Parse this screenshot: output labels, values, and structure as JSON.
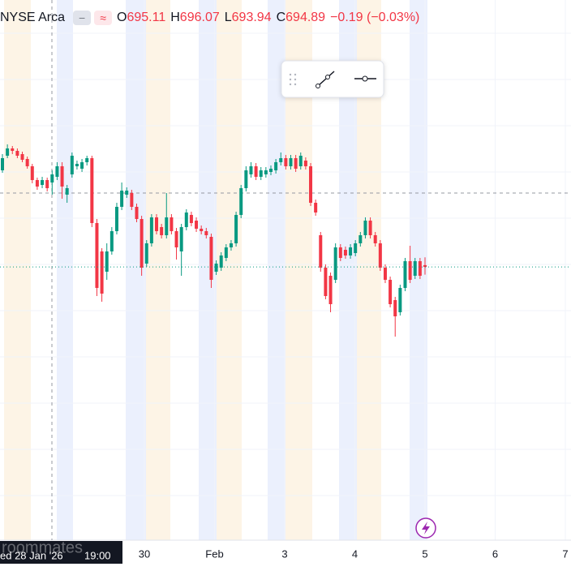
{
  "exchange": "NYSE Arca",
  "ohlc": [
    {
      "label": "O",
      "value": "695.11"
    },
    {
      "label": "H",
      "value": "696.07"
    },
    {
      "label": "L",
      "value": "693.94"
    },
    {
      "label": "C",
      "value": "694.89"
    }
  ],
  "change": "−0.19 (−0.03%)",
  "watermark": "roommates",
  "chart_data": {
    "type": "candlestick",
    "up_color": "#089981",
    "down_color": "#f23645",
    "ylim": [
      661.2,
      727.8
    ],
    "categories": [
      "30",
      "Feb",
      "3",
      "4",
      "5",
      "6",
      "7"
    ],
    "crosshair": {
      "price": 704.0,
      "date": "ed 28 Jan '26",
      "time": "19:00"
    },
    "open": [
      706.8,
      708.6,
      709.5,
      709.2,
      708.8,
      708.2,
      707.3,
      705.6,
      705.0,
      705.6,
      705.3,
      706.0,
      707.3,
      703.8,
      706.3,
      707.3,
      707.0,
      707.8,
      708.3,
      700.3,
      696.8,
      694.3,
      696.8,
      699.3,
      702.3,
      703.8,
      704.0,
      702.3,
      700.8,
      695.3,
      697.8,
      701.0,
      699.8,
      698.8,
      701.0,
      699.3,
      696.8,
      699.8,
      701.3,
      700.6,
      699.6,
      699.3,
      698.6,
      694.3,
      694.8,
      696.0,
      697.3,
      697.8,
      701.3,
      704.6,
      706.3,
      707.3,
      706.0,
      706.3,
      706.6,
      706.8,
      707.8,
      708.3,
      707.3,
      708.3,
      707.3,
      708.0,
      707.3,
      702.8,
      698.8,
      694.8,
      693.8,
      693.3,
      697.3,
      697.0,
      696.3,
      696.6,
      697.8,
      698.8,
      700.6,
      698.8,
      697.8,
      694.8,
      693.3,
      690.8,
      689.3,
      692.3,
      695.6,
      693.8,
      695.6,
      695.11
    ],
    "high": [
      708.8,
      710.0,
      709.8,
      709.5,
      709.1,
      708.5,
      707.6,
      705.9,
      706.0,
      705.9,
      706.8,
      707.8,
      707.8,
      705.0,
      709.0,
      708.0,
      708.2,
      708.6,
      708.6,
      700.8,
      697.2,
      697.8,
      699.8,
      702.8,
      705.3,
      704.7,
      704.4,
      702.7,
      701.2,
      698.2,
      701.4,
      701.4,
      700.2,
      704.0,
      701.4,
      699.7,
      700.2,
      702.0,
      701.7,
      701.0,
      700.0,
      699.7,
      699.0,
      695.7,
      696.7,
      697.7,
      698.2,
      701.7,
      705.0,
      707.3,
      707.8,
      707.7,
      707.2,
      707.2,
      707.4,
      708.2,
      709.0,
      708.7,
      708.7,
      708.7,
      709.0,
      708.4,
      707.7,
      703.2,
      699.2,
      695.2,
      694.2,
      697.8,
      697.7,
      697.4,
      697.7,
      698.2,
      699.2,
      701.0,
      701.0,
      699.2,
      698.2,
      695.2,
      693.7,
      691.2,
      692.7,
      696.0,
      697.5,
      696.0,
      696.0,
      696.07
    ],
    "low": [
      706.5,
      708.3,
      708.8,
      708.3,
      707.8,
      707.0,
      705.2,
      704.4,
      704.6,
      704.2,
      703.8,
      705.6,
      703.3,
      702.8,
      705.9,
      706.9,
      706.6,
      707.4,
      699.8,
      691.3,
      690.6,
      693.3,
      696.4,
      698.9,
      701.9,
      703.4,
      701.9,
      700.4,
      693.8,
      694.9,
      697.4,
      698.9,
      698.4,
      698.4,
      698.9,
      695.8,
      693.8,
      699.4,
      699.9,
      699.2,
      698.9,
      698.4,
      692.3,
      693.9,
      694.4,
      695.6,
      696.9,
      697.4,
      700.9,
      704.2,
      705.9,
      705.6,
      705.6,
      705.9,
      706.2,
      706.4,
      707.4,
      706.9,
      706.9,
      706.6,
      706.9,
      706.9,
      702.4,
      701.2,
      694.3,
      690.9,
      689.3,
      692.9,
      695.6,
      695.9,
      695.9,
      696.2,
      697.4,
      698.4,
      698.4,
      697.4,
      694.4,
      692.9,
      689.9,
      686.3,
      688.9,
      691.9,
      692.9,
      693.4,
      693.4,
      693.94
    ],
    "close": [
      708.3,
      709.5,
      709.2,
      708.6,
      708.1,
      707.3,
      705.6,
      704.8,
      705.6,
      704.6,
      706.3,
      707.3,
      704.8,
      704.6,
      708.6,
      707.6,
      707.8,
      708.3,
      700.3,
      692.3,
      691.6,
      696.8,
      699.3,
      702.3,
      704.3,
      704.3,
      702.3,
      700.8,
      694.8,
      697.8,
      701.0,
      699.3,
      698.8,
      701.0,
      699.3,
      697.3,
      699.8,
      701.6,
      700.3,
      699.6,
      699.3,
      698.8,
      693.3,
      695.3,
      696.3,
      697.3,
      697.8,
      701.3,
      704.6,
      706.8,
      707.3,
      706.0,
      706.8,
      706.8,
      707.0,
      707.8,
      708.3,
      707.3,
      708.3,
      707.0,
      708.6,
      707.3,
      702.8,
      701.6,
      694.8,
      691.3,
      690.3,
      697.3,
      696.0,
      696.3,
      697.3,
      697.8,
      698.8,
      700.6,
      698.8,
      697.8,
      694.8,
      693.3,
      690.3,
      688.8,
      692.3,
      695.6,
      693.3,
      695.6,
      693.8,
      694.89
    ]
  }
}
